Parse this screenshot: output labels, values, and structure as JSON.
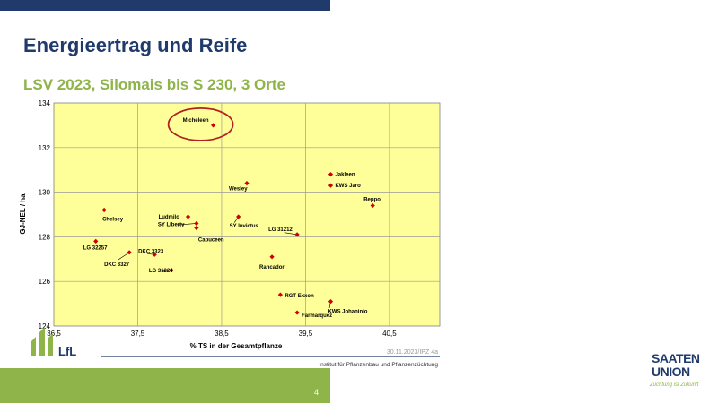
{
  "slide": {
    "title": "Energieertrag und Reife",
    "subtitle": "LSV 2023, Silomais bis S 230, 3 Orte",
    "page_number": "4"
  },
  "chart_footer": {
    "date_ref": "30.11.2023/IPZ 4a",
    "institute": "Institut für Pflanzenbau und Pflanzenzüchtung",
    "lfl_logo": "LfL"
  },
  "brand": {
    "line1": "SAATEN",
    "line2": "UNION",
    "slogan": "Züchtung ist Zukunft"
  },
  "colors": {
    "navy": "#1f3a6b",
    "green": "#8fb44a",
    "plot_bg": "#ffff99",
    "marker": "#cc0000",
    "highlight": "#b22222"
  },
  "chart_data": {
    "type": "scatter",
    "xlabel": "% TS in der Gesamtpflanze",
    "ylabel": "GJ-NEL / ha",
    "xlim": [
      36.5,
      41.1
    ],
    "ylim": [
      124,
      134
    ],
    "xticks": [
      "36,5",
      "37,5",
      "38,5",
      "39,5",
      "40,5"
    ],
    "yticks": [
      "124",
      "126",
      "128",
      "130",
      "132",
      "134"
    ],
    "grid": true,
    "points": [
      {
        "label": "Micheleen",
        "x": 38.4,
        "y": 133.0,
        "highlight": true
      },
      {
        "label": "Jakleen",
        "x": 39.8,
        "y": 130.8
      },
      {
        "label": "KWS Jaro",
        "x": 39.8,
        "y": 130.3
      },
      {
        "label": "Beppo",
        "x": 40.3,
        "y": 129.4
      },
      {
        "label": "Wesley",
        "x": 38.8,
        "y": 130.4
      },
      {
        "label": "Chelsey",
        "x": 37.1,
        "y": 129.2
      },
      {
        "label": "Ludmilo",
        "x": 38.1,
        "y": 128.9
      },
      {
        "label": "SY Liberty",
        "x": 38.2,
        "y": 128.6
      },
      {
        "label": "Capuceen",
        "x": 38.2,
        "y": 128.4
      },
      {
        "label": "SY Invictus",
        "x": 38.7,
        "y": 128.9
      },
      {
        "label": "LG 31212",
        "x": 39.4,
        "y": 128.1
      },
      {
        "label": "LG 32257",
        "x": 37.0,
        "y": 127.8
      },
      {
        "label": "DKC 3327",
        "x": 37.4,
        "y": 127.3
      },
      {
        "label": "DKC 3323",
        "x": 37.7,
        "y": 127.2
      },
      {
        "label": "LG 31224",
        "x": 37.9,
        "y": 126.5
      },
      {
        "label": "Rancador",
        "x": 39.1,
        "y": 127.1
      },
      {
        "label": "RGT Exxon",
        "x": 39.2,
        "y": 125.4
      },
      {
        "label": "KWS Johaninio",
        "x": 39.8,
        "y": 125.1
      },
      {
        "label": "Farmarquez",
        "x": 39.4,
        "y": 124.6
      }
    ]
  }
}
